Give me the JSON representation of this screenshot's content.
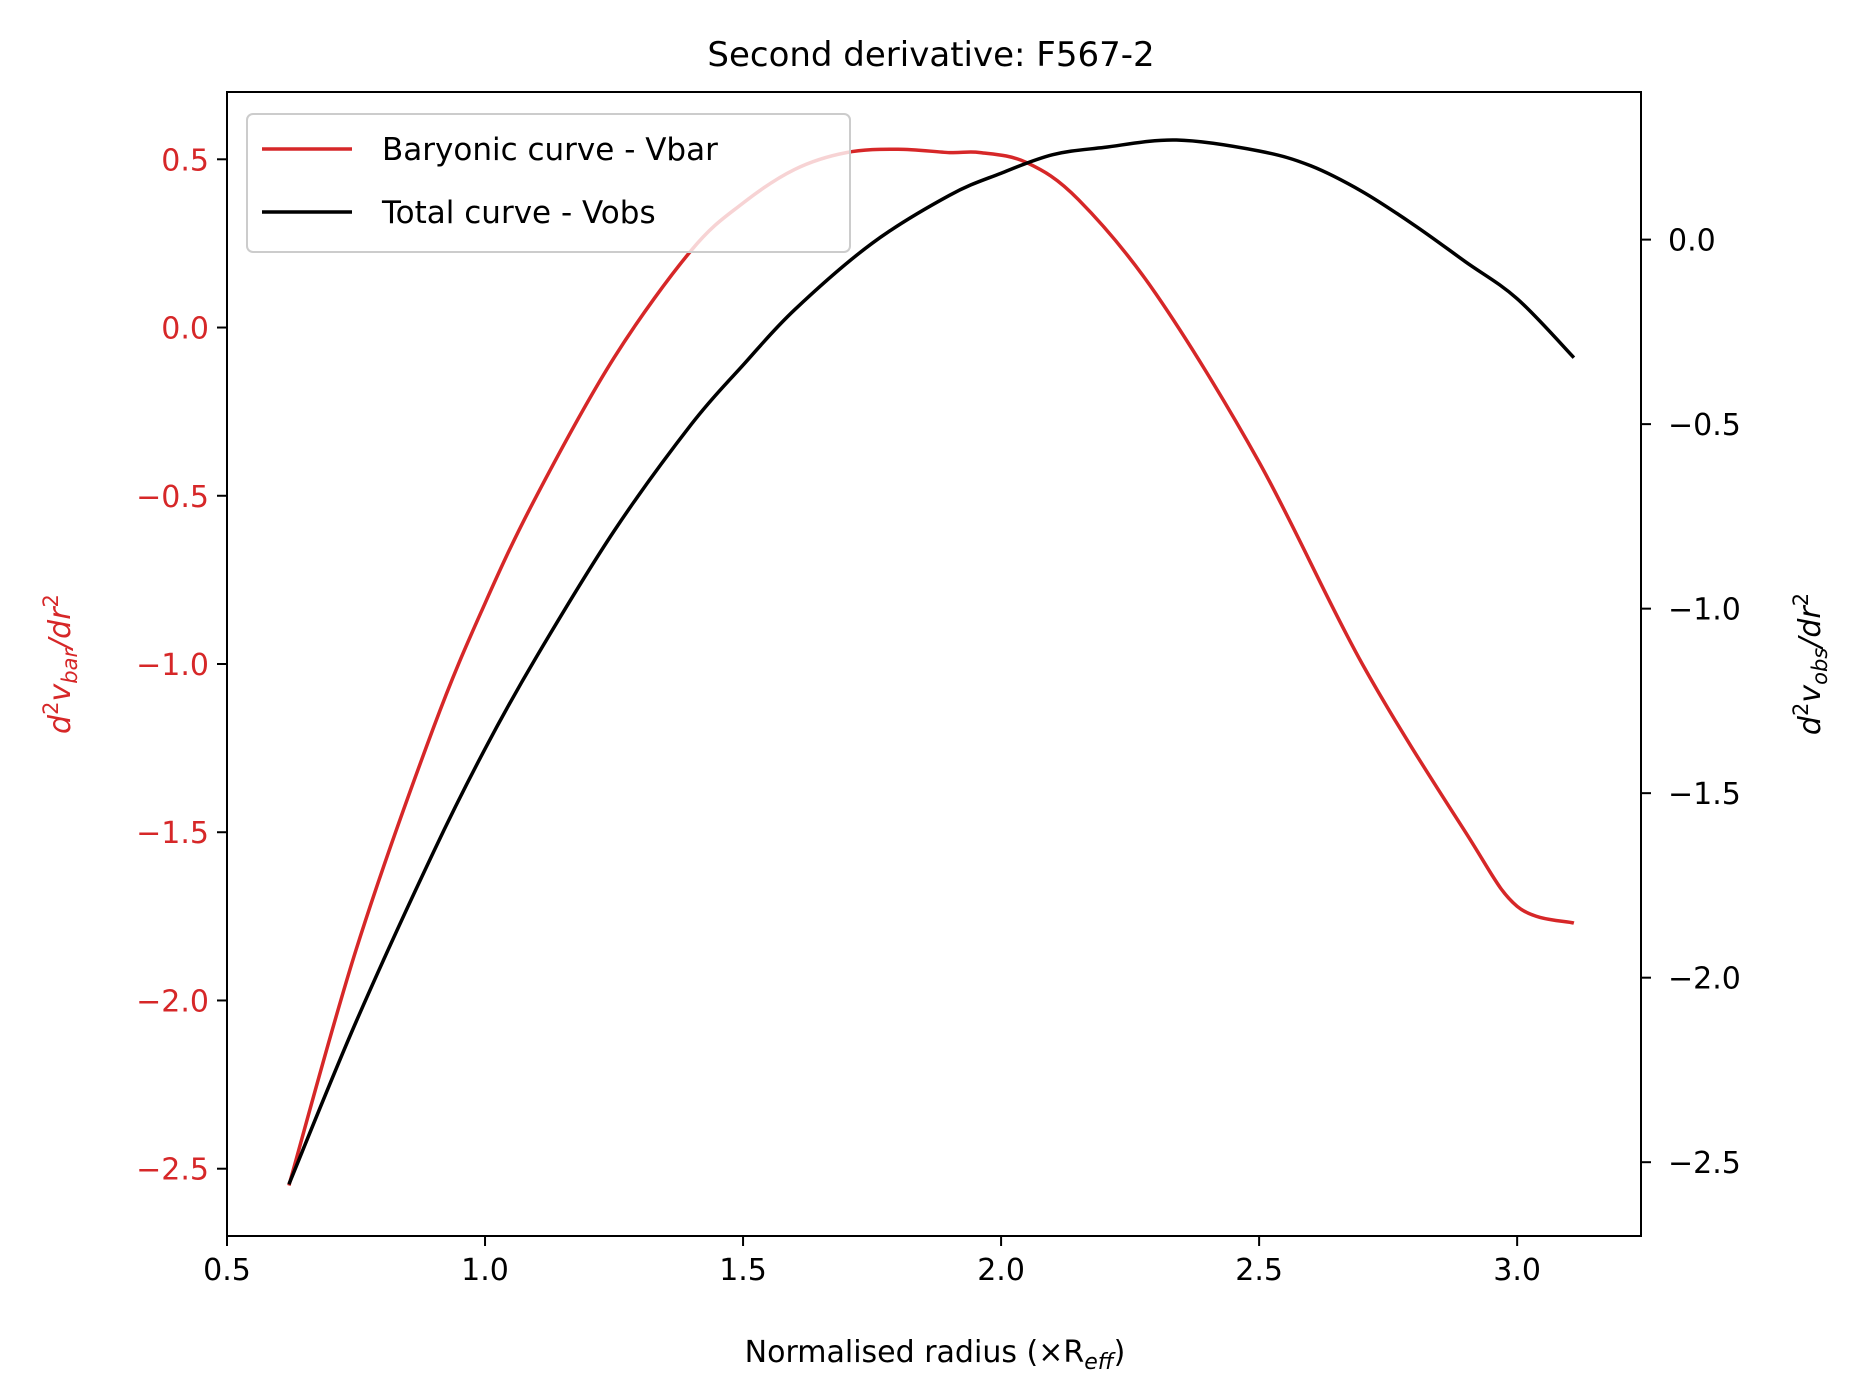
{
  "chart_data": {
    "type": "line",
    "title": "Second derivative: F567-2",
    "xlabel": "Normalised radius (×R",
    "xlabel_sub": "eff",
    "xlabel_close": ")",
    "ylabel_left": {
      "base": "d",
      "sup1": "2",
      "mid": "v",
      "sub": "bar",
      "tail": "/dr",
      "sup2": "2"
    },
    "ylabel_right": {
      "base": "d",
      "sup1": "2",
      "mid": "v",
      "sub": "obs",
      "tail": "/dr",
      "sup2": "2"
    },
    "xlim": [
      0.5,
      3.24
    ],
    "ylim_left": [
      -2.7,
      0.7
    ],
    "ylim_right": [
      -2.7,
      0.4
    ],
    "x_ticks": [
      0.5,
      1.0,
      1.5,
      2.0,
      2.5,
      3.0
    ],
    "x_tick_labels": [
      "0.5",
      "1.0",
      "1.5",
      "2.0",
      "2.5",
      "3.0"
    ],
    "y_left_ticks": [
      0.5,
      0.0,
      -0.5,
      -1.0,
      -1.5,
      -2.0,
      -2.5
    ],
    "y_left_tick_labels": [
      "0.5",
      "0.0",
      "−0.5",
      "−1.0",
      "−1.5",
      "−2.0",
      "−2.5"
    ],
    "y_right_ticks": [
      0.0,
      -0.5,
      -1.0,
      -1.5,
      -2.0,
      -2.5
    ],
    "y_right_tick_labels": [
      "0.0",
      "−0.5",
      "−1.0",
      "−1.5",
      "−2.0",
      "−2.5"
    ],
    "grid": false,
    "legend_position": "top-left",
    "series": [
      {
        "name": "Baryonic curve - Vbar",
        "axis": "left",
        "color": "#d62728",
        "x": [
          0.62,
          0.75,
          0.9,
          1.0,
          1.1,
          1.25,
          1.4,
          1.5,
          1.6,
          1.7,
          1.8,
          1.9,
          1.96,
          2.05,
          2.15,
          2.3,
          2.5,
          2.7,
          2.9,
          3.0,
          3.11
        ],
        "y": [
          -2.55,
          -1.85,
          -1.19,
          -0.82,
          -0.5,
          -0.09,
          0.23,
          0.37,
          0.47,
          0.52,
          0.53,
          0.52,
          0.52,
          0.49,
          0.38,
          0.1,
          -0.4,
          -1.0,
          -1.5,
          -1.72,
          -1.77
        ]
      },
      {
        "name": "Total curve - Vobs",
        "axis": "right",
        "color": "#000000",
        "x": [
          0.62,
          0.75,
          0.9,
          1.0,
          1.1,
          1.25,
          1.4,
          1.5,
          1.6,
          1.75,
          1.9,
          2.0,
          2.1,
          2.2,
          2.34,
          2.5,
          2.6,
          2.7,
          2.8,
          2.9,
          3.0,
          3.11
        ],
        "y": [
          -2.56,
          -2.12,
          -1.66,
          -1.38,
          -1.13,
          -0.79,
          -0.5,
          -0.34,
          -0.19,
          -0.01,
          0.12,
          0.18,
          0.23,
          0.25,
          0.27,
          0.24,
          0.2,
          0.13,
          0.04,
          -0.06,
          -0.16,
          -0.32
        ]
      }
    ]
  }
}
